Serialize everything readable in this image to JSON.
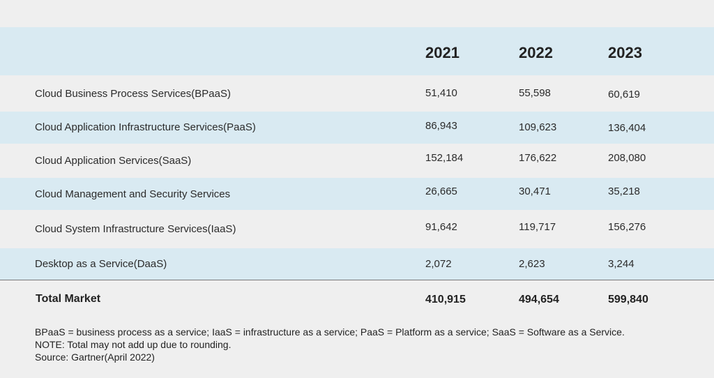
{
  "table": {
    "years": [
      "2021",
      "2022",
      "2023"
    ],
    "rows": [
      {
        "label": "Cloud Business Process Services(BPaaS)",
        "values": [
          "51,410",
          "55,598",
          "60,619"
        ]
      },
      {
        "label": "Cloud Application Infrastructure Services(PaaS)",
        "values": [
          "86,943",
          "109,623",
          "136,404"
        ]
      },
      {
        "label": "Cloud Application Services(SaaS)",
        "values": [
          "152,184",
          "176,622",
          "208,080"
        ]
      },
      {
        "label": "Cloud Management and Security Services",
        "values": [
          "26,665",
          "30,471",
          "35,218"
        ]
      },
      {
        "label": "Cloud System Infrastructure Services(IaaS)",
        "values": [
          "91,642",
          "119,717",
          "156,276"
        ]
      },
      {
        "label": "Desktop as a Service(DaaS)",
        "values": [
          "2,072",
          "2,623",
          "3,244"
        ]
      }
    ],
    "total": {
      "label": "Total Market",
      "values": [
        "410,915",
        "494,654",
        "599,840"
      ]
    }
  },
  "notes": [
    "BPaaS = business process as a service; IaaS = infrastructure as a service; PaaS = Platform as a service; SaaS = Software as a Service.",
    "NOTE: Total may not add up due to rounding.",
    "Source: Gartner(April 2022)"
  ],
  "colors": {
    "background": "#efefef",
    "band": "#d9eaf2",
    "rule": "#7a7a7a",
    "text": "#222222"
  }
}
